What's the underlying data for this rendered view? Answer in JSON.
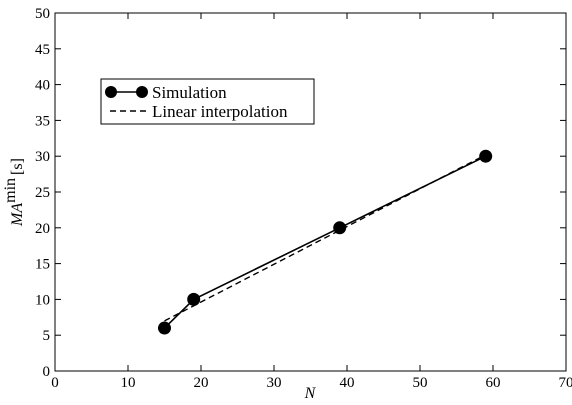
{
  "chart_data": {
    "type": "line",
    "xlabel": "N",
    "ylabel": {
      "main": "MA",
      "sup": "min",
      "unit": "[s]"
    },
    "xlim": [
      0,
      70
    ],
    "ylim": [
      0,
      50
    ],
    "xticks": [
      0,
      10,
      20,
      30,
      40,
      50,
      60,
      70
    ],
    "yticks": [
      0,
      5,
      10,
      15,
      20,
      25,
      30,
      35,
      40,
      45,
      50
    ],
    "grid": false,
    "legend_position": "upper-left",
    "series": [
      {
        "name": "Simulation",
        "style": "solid-with-markers",
        "x": [
          15,
          19,
          39,
          59
        ],
        "y": [
          6,
          10,
          20,
          30
        ]
      },
      {
        "name": "Linear interpolation",
        "style": "dashed",
        "x": [
          15,
          59
        ],
        "y": [
          7,
          30.2
        ]
      }
    ]
  }
}
